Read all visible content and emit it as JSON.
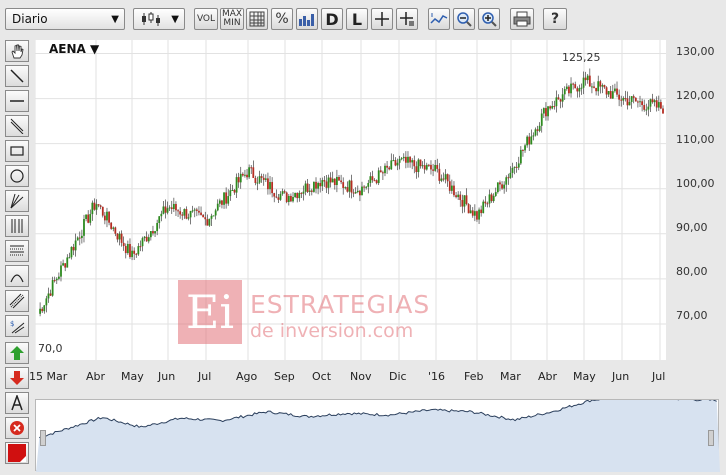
{
  "toolbar": {
    "period_select": "Diario",
    "vol": "VOL",
    "max": "MAX",
    "min": "MIN",
    "percent": "%",
    "d": "D",
    "l": "L",
    "help": "?"
  },
  "chart": {
    "symbol": "AENA",
    "symbol_arrow": "▼",
    "y_labels": [
      "130,00",
      "120,00",
      "110,00",
      "100,00",
      "90,00",
      "80,00",
      "70,00"
    ],
    "x_labels": [
      "15 Mar",
      "Abr",
      "May",
      "Jun",
      "Jul",
      "Ago",
      "Sep",
      "Oct",
      "Nov",
      "Dic",
      "'16",
      "Feb",
      "Mar",
      "Abr",
      "May",
      "Jun",
      "Jul"
    ],
    "high_label": "125,25",
    "low_label": "70,0",
    "up_color": "#2d8a1f",
    "down_color": "#b52d23",
    "grid_color": "#e2e2e2"
  },
  "chart_data": {
    "type": "line",
    "title": "AENA",
    "x": [
      "15 Mar",
      "Abr",
      "May",
      "Jun",
      "Jul",
      "Ago",
      "Sep",
      "Oct",
      "Nov",
      "Dic",
      "'16",
      "Feb",
      "Mar",
      "Abr",
      "May",
      "Jun",
      "Jul"
    ],
    "series": [
      {
        "values": [
          71,
          97,
          85,
          96,
          93,
          104,
          98,
          102,
          100,
          106,
          104,
          94,
          104,
          118,
          124,
          120,
          118
        ]
      }
    ],
    "annotations": [
      "125,25",
      "70,0"
    ],
    "ylim": [
      62,
      133
    ],
    "grid": true
  },
  "watermark": {
    "logo_letters": "Ei",
    "line1": "ESTRATEGIAS",
    "line2": "de inversion.com"
  }
}
